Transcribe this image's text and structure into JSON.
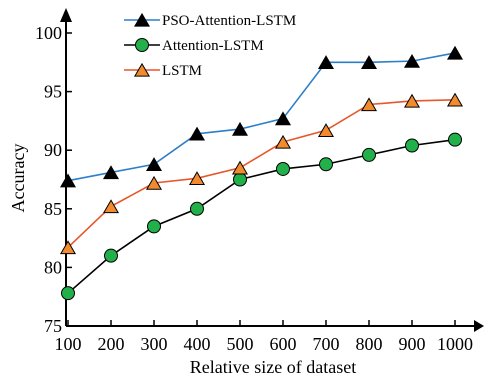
{
  "chart_data": {
    "type": "line",
    "xlabel": "Relative size of dataset",
    "ylabel": "Accuracy",
    "x": [
      100,
      200,
      300,
      400,
      500,
      600,
      700,
      800,
      900,
      1000
    ],
    "x_tick_labels": [
      "100",
      "200",
      "300",
      "400",
      "500",
      "600",
      "700",
      "800",
      "900",
      "1000"
    ],
    "y_ticks": [
      75,
      80,
      85,
      90,
      95,
      100
    ],
    "ylim": [
      75,
      100
    ],
    "grid": false,
    "legend_position": "top-left",
    "series": [
      {
        "name": "PSO-Attention-LSTM",
        "color": "#2e7fc9",
        "marker": "triangle",
        "marker_fill": "#000000",
        "values": [
          87.4,
          88.1,
          88.8,
          91.4,
          91.8,
          92.7,
          97.5,
          97.5,
          97.6,
          98.3
        ]
      },
      {
        "name": "Attention-LSTM",
        "color": "#000000",
        "marker": "circle",
        "marker_fill": "#22b04b",
        "values": [
          77.8,
          81.0,
          83.5,
          85.0,
          87.5,
          88.4,
          88.8,
          89.6,
          90.4,
          90.9
        ]
      },
      {
        "name": "LSTM",
        "color": "#e8572a",
        "marker": "triangle",
        "marker_fill": "#f28a2e",
        "values": [
          81.7,
          85.2,
          87.2,
          87.6,
          88.5,
          90.7,
          91.7,
          93.9,
          94.2,
          94.3
        ]
      }
    ]
  }
}
